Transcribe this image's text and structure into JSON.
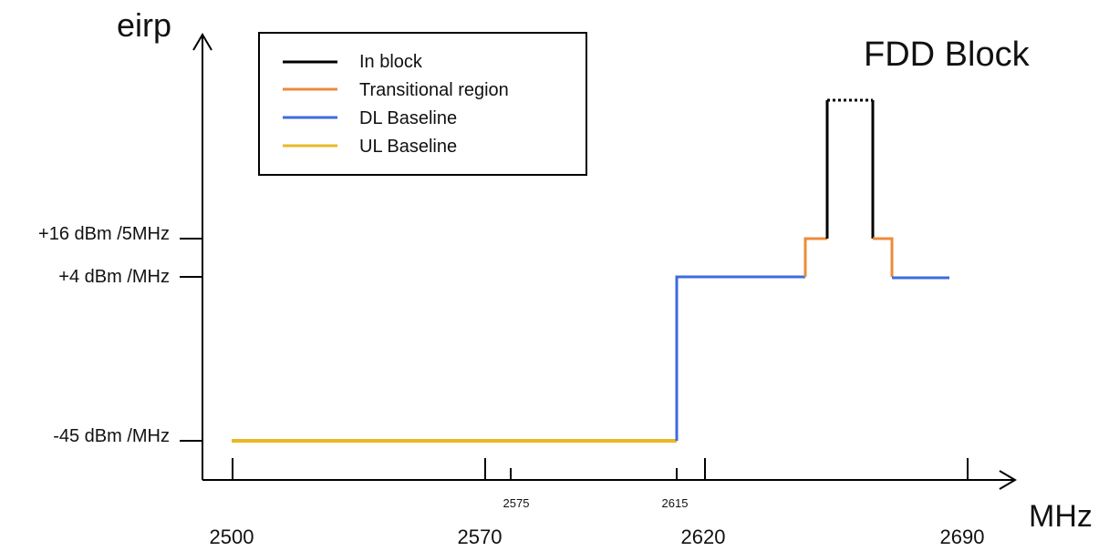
{
  "axes": {
    "y_label": "eirp",
    "x_label": "MHz"
  },
  "title": "FDD Block",
  "legend": [
    {
      "label": "In block",
      "color": "#000000"
    },
    {
      "label": "Transitional region",
      "color": "#ED8B3A"
    },
    {
      "label": "DL Baseline",
      "color": "#3D6BE0"
    },
    {
      "label": "UL Baseline",
      "color": "#E8B923"
    }
  ],
  "y_ticks": [
    "+16 dBm /5MHz",
    "+4 dBm /MHz",
    "-45 dBm /MHz"
  ],
  "x_ticks_major": [
    "2500",
    "2570",
    "2620",
    "2690"
  ],
  "x_ticks_minor": [
    "2575",
    "2615"
  ],
  "colors": {
    "in_block": "#000000",
    "transitional": "#ED8B3A",
    "dl_baseline": "#3D6BE0",
    "ul_baseline": "#E8B923",
    "axis": "#000000"
  }
}
